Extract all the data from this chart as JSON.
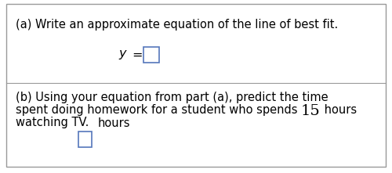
{
  "bg_color": "#ffffff",
  "border_color": "#999999",
  "divider_color": "#999999",
  "text_color": "#000000",
  "box_border_color": "#5577bb",
  "part_a_label": "(a) Write an approximate equation of the line of best fit.",
  "part_a_eq_italic": "y",
  "part_a_eq_eq": " = ",
  "part_b_line1": "(b) Using your equation from part (a), predict the time",
  "part_b_line2_pre": "spent doing homework for a student who spends ",
  "part_b_line2_num": "15",
  "part_b_line2_post": " hours",
  "part_b_line3": "watching TV.",
  "part_b_unit": "hours",
  "font_size": 10.5,
  "font_size_num": 14,
  "figsize": [
    5.0,
    2.21
  ],
  "dpi": 100
}
